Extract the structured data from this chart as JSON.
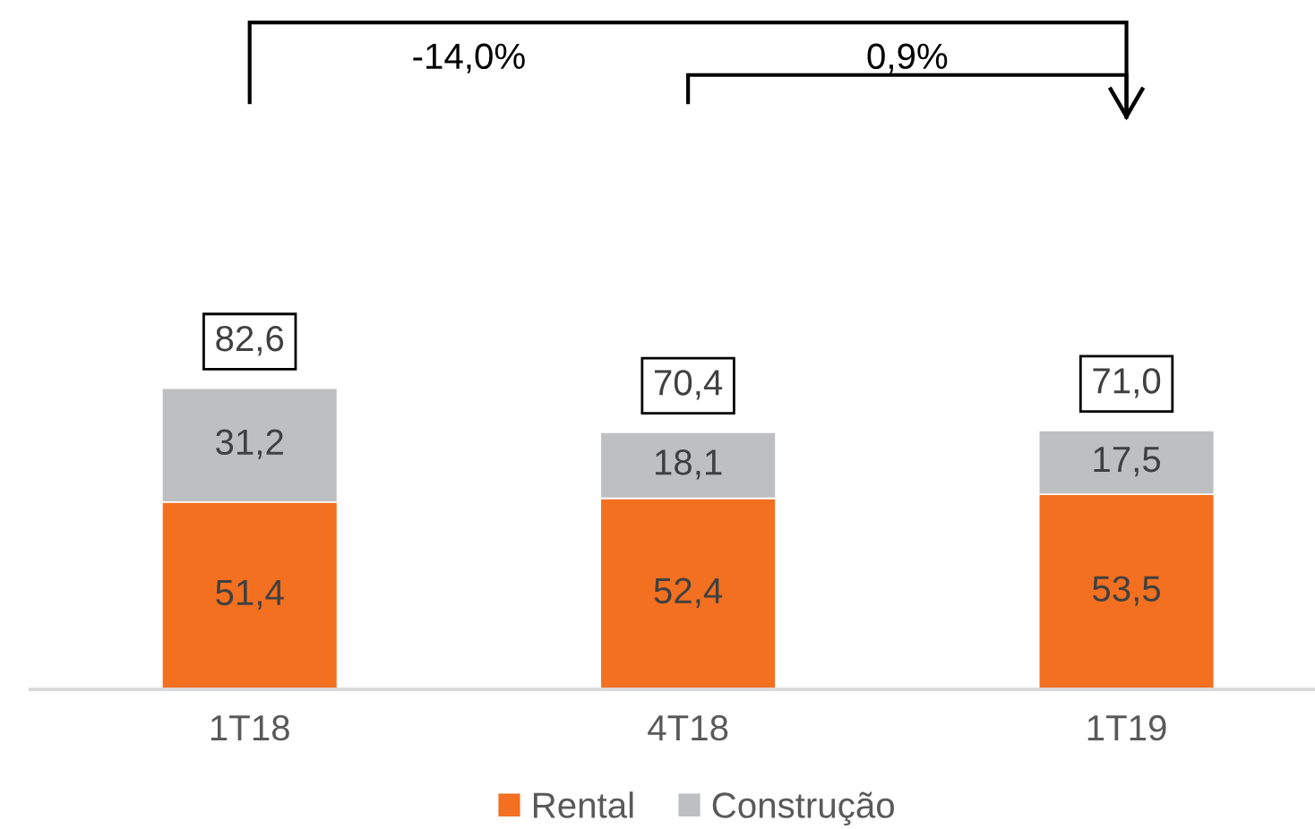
{
  "chart_data": {
    "type": "bar",
    "stacked": true,
    "categories": [
      "1T18",
      "4T18",
      "1T19"
    ],
    "series": [
      {
        "name": "Rental",
        "color": "#f37021",
        "values": [
          51.4,
          52.4,
          53.5
        ],
        "value_labels": [
          "51,4",
          "52,4",
          "53,5"
        ]
      },
      {
        "name": "Construção",
        "color": "#bebfc1",
        "values": [
          31.2,
          18.1,
          17.5
        ],
        "value_labels": [
          "31,2",
          "18,1",
          "17,5"
        ]
      }
    ],
    "totals": [
      "82,6",
      "70,4",
      "71,0"
    ],
    "annotations": [
      "-14,0%",
      "0,9%"
    ],
    "legend": "bottom",
    "tick_labels": "x"
  }
}
